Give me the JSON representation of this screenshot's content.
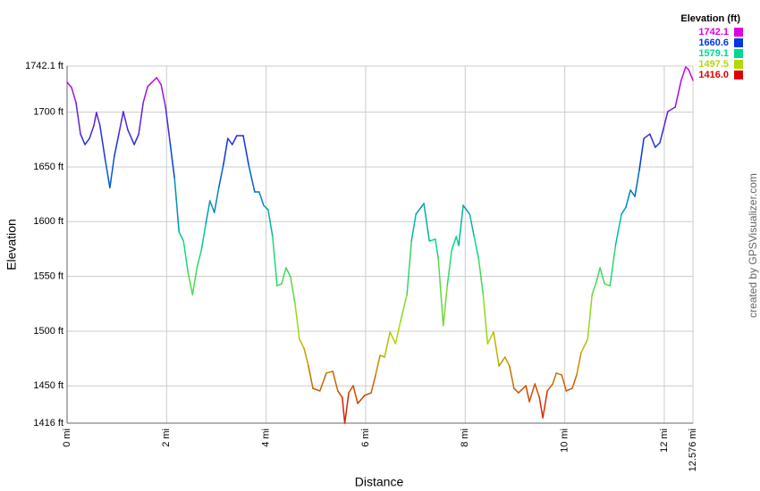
{
  "chart_data": {
    "type": "line",
    "x_label": "Distance",
    "y_label": "Elevation",
    "credit": "created by GPSVisualizer.com",
    "legend": {
      "title": "Elevation (ft)",
      "position": "top-right",
      "stops": [
        {
          "value": 1742.1,
          "label": "1742.1",
          "color": "#e000e0"
        },
        {
          "value": 1660.6,
          "label": "1660.6",
          "color": "#0038e0"
        },
        {
          "value": 1579.1,
          "label": "1579.1",
          "color": "#00d890"
        },
        {
          "value": 1497.5,
          "label": "1497.5",
          "color": "#b4d800"
        },
        {
          "value": 1416,
          "label": "1416.0",
          "color": "#e00000"
        }
      ]
    },
    "xlim": [
      0,
      12.576
    ],
    "xticks": [
      {
        "value": 0,
        "label": "0 mi"
      },
      {
        "value": 2,
        "label": "2 mi"
      },
      {
        "value": 4,
        "label": "4 mi"
      },
      {
        "value": 6,
        "label": "6 mi"
      },
      {
        "value": 8,
        "label": "8 mi"
      },
      {
        "value": 10,
        "label": "10 mi"
      },
      {
        "value": 12,
        "label": "12 mi"
      },
      {
        "value": 12.576,
        "label": "12.576 mi"
      }
    ],
    "ylim": [
      1416,
      1742.1
    ],
    "yticks": [
      {
        "value": 1416,
        "label": "1416 ft"
      },
      {
        "value": 1450,
        "label": "1450 ft"
      },
      {
        "value": 1500,
        "label": "1500 ft"
      },
      {
        "value": 1550,
        "label": "1550 ft"
      },
      {
        "value": 1600,
        "label": "1600 ft"
      },
      {
        "value": 1650,
        "label": "1650 ft"
      },
      {
        "value": 1700,
        "label": "1700 ft"
      },
      {
        "value": 1742.1,
        "label": "1742.1 ft"
      }
    ],
    "grid": true,
    "x": [
      0,
      0.09,
      0.18,
      0.27,
      0.36,
      0.45,
      0.54,
      0.59,
      0.66,
      0.77,
      0.86,
      0.95,
      1.04,
      1.13,
      1.22,
      1.35,
      1.44,
      1.53,
      1.62,
      1.8,
      1.89,
      1.98,
      2.07,
      2.16,
      2.25,
      2.34,
      2.43,
      2.52,
      2.61,
      2.7,
      2.79,
      2.87,
      2.96,
      3.05,
      3.14,
      3.23,
      3.32,
      3.41,
      3.54,
      3.65,
      3.77,
      3.86,
      3.95,
      4.04,
      4.13,
      4.22,
      4.31,
      4.4,
      4.49,
      4.58,
      4.67,
      4.76,
      4.85,
      4.94,
      5.08,
      5.21,
      5.34,
      5.44,
      5.53,
      5.58,
      5.66,
      5.75,
      5.84,
      5.98,
      6.11,
      6.2,
      6.29,
      6.38,
      6.49,
      6.6,
      6.7,
      6.83,
      6.92,
      7.01,
      7.17,
      7.28,
      7.4,
      7.46,
      7.56,
      7.64,
      7.73,
      7.82,
      7.87,
      7.96,
      8.09,
      8.18,
      8.27,
      8.36,
      8.45,
      8.57,
      8.68,
      8.8,
      8.89,
      8.98,
      9.07,
      9.22,
      9.29,
      9.4,
      9.49,
      9.56,
      9.65,
      9.76,
      9.83,
      9.94,
      10.03,
      10.15,
      10.24,
      10.33,
      10.46,
      10.55,
      10.64,
      10.71,
      10.8,
      10.91,
      11.02,
      11.14,
      11.23,
      11.32,
      11.41,
      11.5,
      11.59,
      11.71,
      11.82,
      11.91,
      11.98,
      12.07,
      12.22,
      12.34,
      12.43,
      12.49,
      12.576
    ],
    "y": [
      1727.4,
      1722.5,
      1708.7,
      1680,
      1670.4,
      1676,
      1688,
      1699.7,
      1688,
      1655.7,
      1631,
      1659.8,
      1680,
      1700.5,
      1684,
      1670.4,
      1680,
      1708.7,
      1723.4,
      1731.5,
      1725,
      1704.6,
      1672,
      1639.4,
      1590.5,
      1582.3,
      1553.8,
      1533.4,
      1557.9,
      1574.2,
      1598.6,
      1619,
      1608.4,
      1631.2,
      1651.6,
      1676,
      1670.4,
      1678.5,
      1678.5,
      1651.6,
      1627.2,
      1627.2,
      1614.9,
      1610.9,
      1586.4,
      1541.5,
      1543.2,
      1557.9,
      1549.7,
      1525.2,
      1492.6,
      1484.5,
      1468.2,
      1447.8,
      1445.4,
      1461.7,
      1463.3,
      1445.4,
      1439.6,
      1416,
      1443.7,
      1450.2,
      1434,
      1441.3,
      1443.7,
      1460,
      1478,
      1476.3,
      1499.2,
      1488.6,
      1509,
      1533.4,
      1582.3,
      1606.8,
      1616.6,
      1582.3,
      1584,
      1566,
      1504.9,
      1541.5,
      1574.2,
      1586.4,
      1578.2,
      1614.9,
      1606.8,
      1586.4,
      1566,
      1533.4,
      1488.6,
      1499.2,
      1468.2,
      1476.3,
      1468.2,
      1447.8,
      1443.7,
      1450.2,
      1435.6,
      1451.9,
      1439.6,
      1420.9,
      1445.4,
      1451.9,
      1461.7,
      1460,
      1445.4,
      1447.8,
      1460,
      1480.4,
      1492.6,
      1533.4,
      1545.6,
      1557.9,
      1543.2,
      1541.5,
      1578.2,
      1606.8,
      1613.3,
      1628.8,
      1623.1,
      1647.5,
      1676,
      1680,
      1667.9,
      1672,
      1684.2,
      1700.5,
      1704.6,
      1729.1,
      1741.3,
      1738.8,
      1729.1
    ]
  }
}
